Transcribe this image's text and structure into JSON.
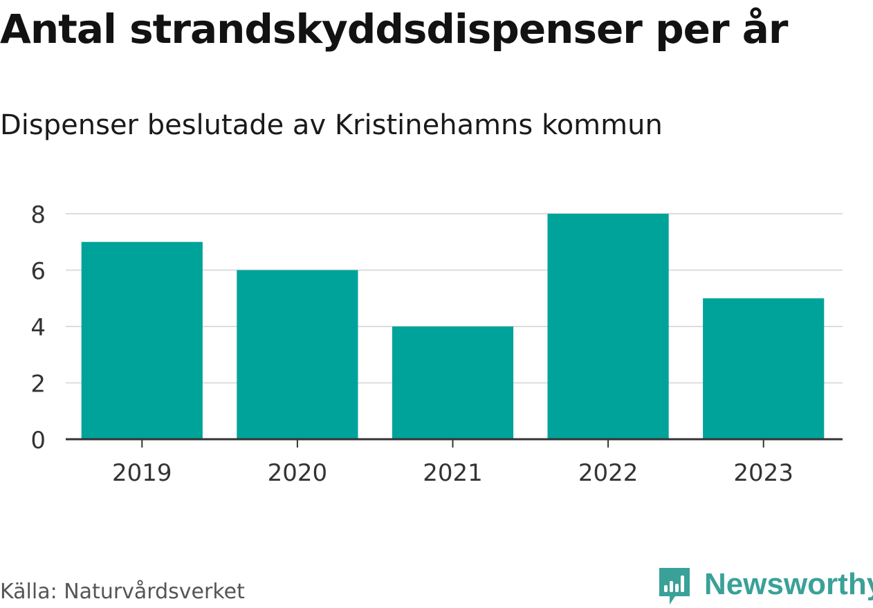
{
  "title": "Antal strandskyddsdispenser per år",
  "subtitle": "Dispenser beslutade av Kristinehamns kommun",
  "source": "Källa: Naturvårdsverket",
  "brand": {
    "name": "Newsworthy",
    "icon": "newsworthy-logo-icon",
    "color": "#3aa198"
  },
  "chart_data": {
    "type": "bar",
    "categories": [
      "2019",
      "2020",
      "2021",
      "2022",
      "2023"
    ],
    "values": [
      7,
      6,
      4,
      8,
      5
    ],
    "yticks": [
      "0",
      "2",
      "4",
      "6",
      "8"
    ],
    "ylim": [
      0,
      8
    ],
    "xlabel": "",
    "ylabel": "",
    "grid": true,
    "bar_color": "#00a39a"
  }
}
